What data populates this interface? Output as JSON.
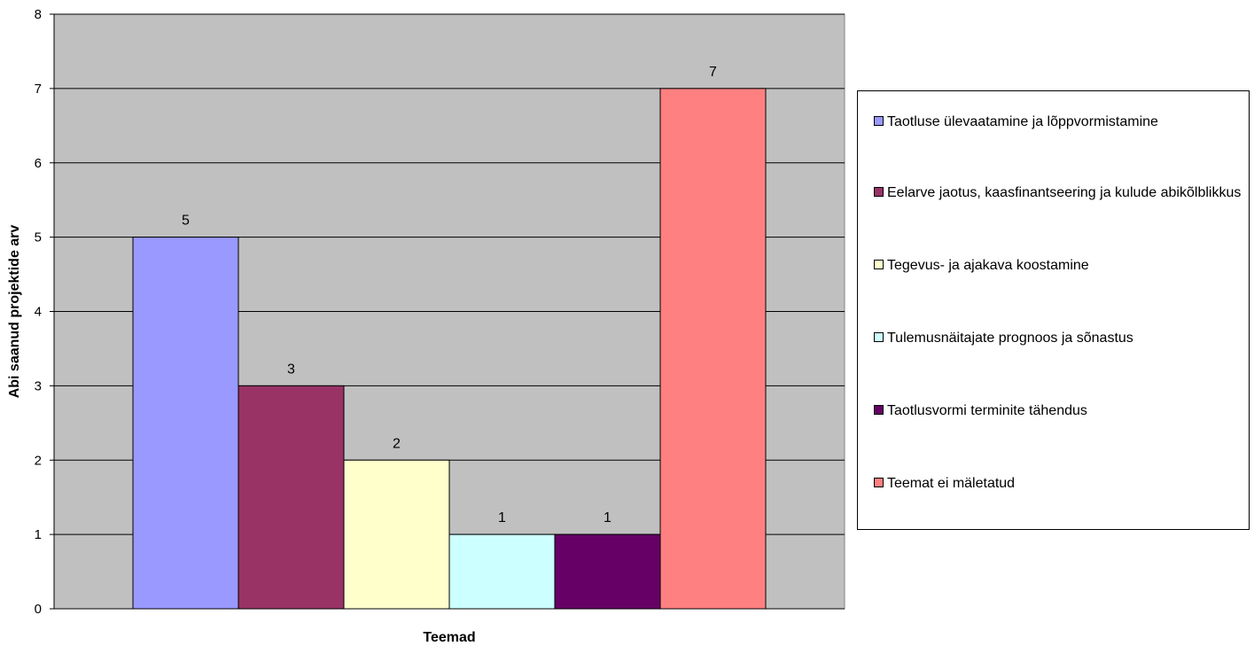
{
  "chart_data": {
    "type": "bar",
    "xlabel": "Teemad",
    "ylabel": "Abi saanud projektide arv",
    "ylim": [
      0,
      8
    ],
    "yticks": [
      "0",
      "1",
      "2",
      "3",
      "4",
      "5",
      "6",
      "7",
      "8"
    ],
    "plot_background": "#c0c0c0",
    "grid": true,
    "legend_position": "right",
    "series": [
      {
        "name": "Taotluse ülevaatamine ja lõppvormistamine",
        "value": 5,
        "color": "#9999ff"
      },
      {
        "name": "Eelarve jaotus, kaasfinantseering ja kulude abikõlblikkus",
        "value": 3,
        "color": "#993366"
      },
      {
        "name": "Tegevus- ja ajakava koostamine",
        "value": 2,
        "color": "#ffffcc"
      },
      {
        "name": "Tulemusnäitajate prognoos ja sõnastus",
        "value": 1,
        "color": "#ccffff"
      },
      {
        "name": "Taotlusvormi terminite tähendus",
        "value": 1,
        "color": "#660066"
      },
      {
        "name": "Teemat ei mäletatud",
        "value": 7,
        "color": "#ff8080"
      }
    ]
  }
}
